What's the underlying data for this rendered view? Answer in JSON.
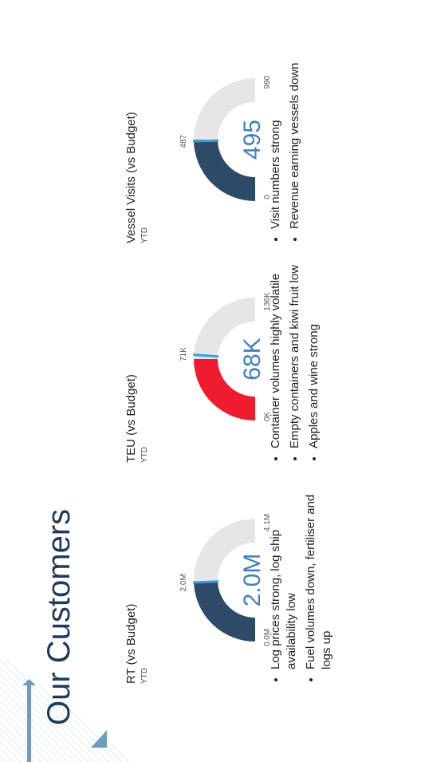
{
  "slide": {
    "title": "Our Customers"
  },
  "colors": {
    "title": "#1f3a5c",
    "track": "#e6e6e6",
    "navy": "#2d4b68",
    "red": "#ee1c2e",
    "target": "#3aa0dc",
    "value_text": "#3f7fbf"
  },
  "panels": [
    {
      "title": "RT (vs Budget)",
      "subtitle": "YTD",
      "min_label": "0.0M",
      "target_label": "2.0M",
      "max_label": "4.1M",
      "value_label": "2.0M",
      "bullets": [
        "Log prices strong, log ship availability low",
        "Fuel volumes down, fertiliser and logs up"
      ]
    },
    {
      "title": "TEU (vs Budget)",
      "subtitle": "YTD",
      "min_label": "0K",
      "target_label": "71K",
      "max_label": "136K",
      "value_label": "68K",
      "bullets": [
        "Container volumes highly volatile",
        "Empty containers and kiwi fruit low",
        "Apples and wine strong"
      ]
    },
    {
      "title": "Vessel Visits (vs Budget)",
      "subtitle": "YTD",
      "min_label": "0",
      "target_label": "487",
      "max_label": "990",
      "value_label": "495",
      "bullets": [
        "Visit numbers strong",
        "Revenue earning vessels down"
      ]
    }
  ],
  "chart_data": [
    {
      "type": "gauge",
      "title": "RT (vs Budget)",
      "subtitle": "YTD",
      "min": 0,
      "max": 4.1,
      "value": 2.0,
      "target": 2.0,
      "unit": "M",
      "color": "#2d4b68"
    },
    {
      "type": "gauge",
      "title": "TEU (vs Budget)",
      "subtitle": "YTD",
      "min": 0,
      "max": 136,
      "value": 68,
      "target": 71,
      "unit": "K",
      "color": "#ee1c2e"
    },
    {
      "type": "gauge",
      "title": "Vessel Visits (vs Budget)",
      "subtitle": "YTD",
      "min": 0,
      "max": 990,
      "value": 495,
      "target": 487,
      "unit": "",
      "color": "#2d4b68"
    }
  ]
}
